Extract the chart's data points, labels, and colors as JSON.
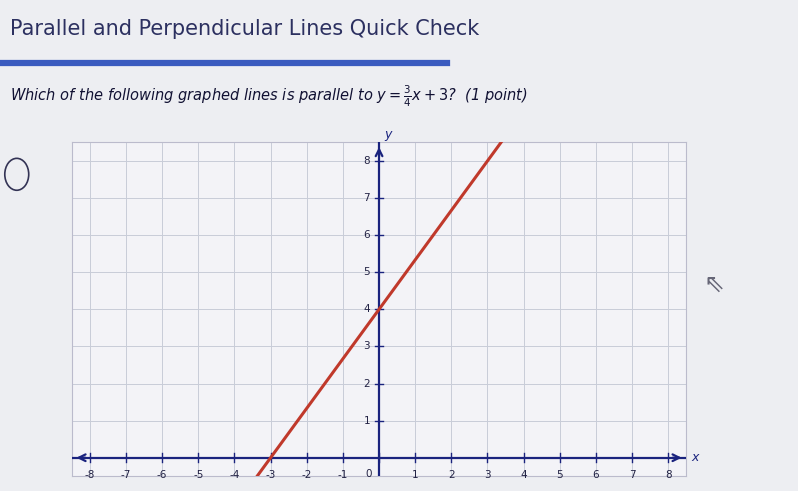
{
  "title": "Parallel and Perpendicular Lines Quick Check",
  "question_prefix": "Which of the following graphed lines is parallel to ",
  "question_suffix": "? (1 point)",
  "bg_color": "#edeef2",
  "plot_bg": "#f3f3f7",
  "grid_color": "#c8ccd8",
  "axis_color": "#1a237e",
  "line_color": "#c0392b",
  "line_x_start": -4.0,
  "line_x_end": 3.4,
  "line_slope": 1.3333,
  "line_intercept": 4.0,
  "xmin": -8,
  "xmax": 8,
  "ymin": 0,
  "ymax": 8,
  "xticks": [
    -8,
    -7,
    -6,
    -5,
    -4,
    -3,
    -2,
    -1,
    0,
    1,
    2,
    3,
    4,
    5,
    6,
    7,
    8
  ],
  "yticks": [
    0,
    1,
    2,
    3,
    4,
    5,
    6,
    7,
    8
  ],
  "header_line_color": "#3a5bbf",
  "header_bg": "#f8f8fc",
  "title_color": "#2c3060",
  "tick_label_color": "#222244",
  "cursor_symbol": "⇖"
}
